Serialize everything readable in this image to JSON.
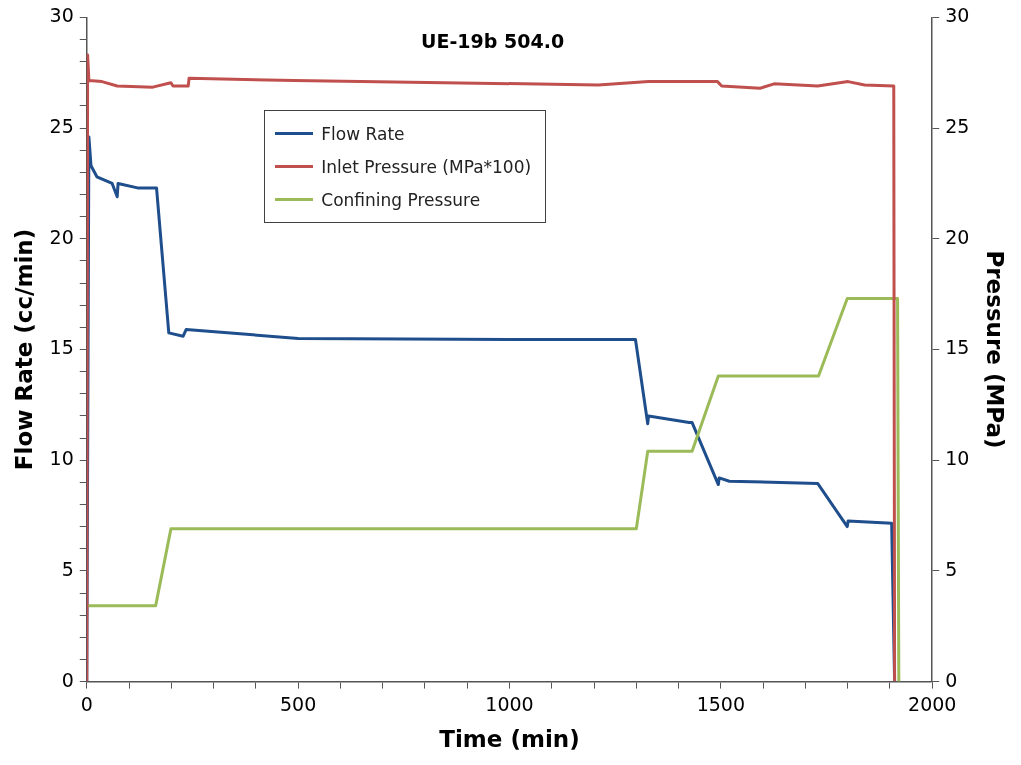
{
  "chart_data": {
    "type": "line",
    "title": "UE-19b 504.0",
    "xlabel": "Time (min)",
    "ylabel": "Flow Rate (cc/min)",
    "y2label": "Pressure (MPa)",
    "xlim": [
      0,
      2000
    ],
    "xticks": [
      0,
      {
        "value": 100,
        "label": null
      },
      {
        "value": 200,
        "label": null
      },
      {
        "value": 300,
        "label": null
      },
      {
        "value": 400,
        "label": null
      },
      500,
      {
        "value": 600,
        "label": null
      },
      {
        "value": 700,
        "label": null
      },
      {
        "value": 800,
        "label": null
      },
      {
        "value": 900,
        "label": null
      },
      1000,
      {
        "value": 1100,
        "label": null
      },
      {
        "value": 1200,
        "label": null
      },
      {
        "value": 1300,
        "label": null
      },
      {
        "value": 1400,
        "label": null
      },
      1500,
      {
        "value": 1600,
        "label": null
      },
      {
        "value": 1700,
        "label": null
      },
      {
        "value": 1800,
        "label": null
      },
      {
        "value": 1900,
        "label": null
      },
      2000
    ],
    "ylim": [
      0,
      30
    ],
    "yticks": [
      0,
      {
        "value": 1,
        "label": null
      },
      {
        "value": 2,
        "label": null
      },
      {
        "value": 3,
        "label": null
      },
      {
        "value": 4,
        "label": null
      },
      5,
      {
        "value": 6,
        "label": null
      },
      {
        "value": 7,
        "label": null
      },
      {
        "value": 8,
        "label": null
      },
      {
        "value": 9,
        "label": null
      },
      10,
      {
        "value": 11,
        "label": null
      },
      {
        "value": 12,
        "label": null
      },
      {
        "value": 13,
        "label": null
      },
      {
        "value": 14,
        "label": null
      },
      15,
      {
        "value": 16,
        "label": null
      },
      {
        "value": 17,
        "label": null
      },
      {
        "value": 18,
        "label": null
      },
      {
        "value": 19,
        "label": null
      },
      20,
      {
        "value": 21,
        "label": null
      },
      {
        "value": 22,
        "label": null
      },
      {
        "value": 23,
        "label": null
      },
      {
        "value": 24,
        "label": null
      },
      25,
      {
        "value": 26,
        "label": null
      },
      {
        "value": 27,
        "label": null
      },
      {
        "value": 28,
        "label": null
      },
      {
        "value": 29,
        "label": null
      },
      30
    ],
    "y2lim": [
      0,
      30
    ],
    "y2ticks": [
      0,
      5,
      10,
      15,
      20,
      25,
      30
    ],
    "grid": false,
    "legend": "top left",
    "marker": "none",
    "line_style": "solid",
    "series": [
      {
        "name": "Flow Rate",
        "color": "#1f4e8c",
        "x": [
          0,
          5,
          10,
          24,
          60,
          72,
          74,
          120,
          165,
          194,
          228,
          235,
          500,
          1000,
          1298,
          1327,
          1329,
          1425,
          1432,
          1494,
          1496,
          1520,
          1729,
          1799,
          1801,
          1904,
          1911
        ],
        "values": [
          0,
          24.6,
          23.3,
          22.8,
          22.5,
          21.9,
          22.5,
          22.3,
          22.3,
          15.75,
          15.6,
          15.9,
          15.5,
          15.45,
          15.45,
          11.65,
          12.0,
          11.7,
          11.7,
          8.9,
          9.2,
          9.05,
          8.95,
          7.0,
          7.25,
          7.15,
          0
        ]
      },
      {
        "name": "Inlet Pressure (MPa*100)",
        "color": "#c0504d",
        "axis": "y2",
        "x": [
          0,
          2,
          5,
          36,
          72,
          156,
          199,
          204,
          240,
          242,
          491,
          1210,
          1329,
          1492,
          1502,
          1593,
          1626,
          1729,
          1801,
          1840,
          1909,
          1911
        ],
        "values": [
          0,
          28.3,
          27.15,
          27.1,
          26.9,
          26.85,
          27.05,
          26.9,
          26.9,
          27.25,
          27.15,
          26.95,
          27.1,
          27.1,
          26.9,
          26.8,
          27.0,
          26.9,
          27.1,
          26.95,
          26.9,
          0
        ]
      },
      {
        "name": "Confining Pressure",
        "color": "#9bbb59",
        "axis": "y2",
        "x": [
          0,
          163,
          199,
          1300,
          1327,
          1432,
          1494,
          1731,
          1799,
          1918,
          1921
        ],
        "values": [
          3.43,
          3.43,
          6.9,
          6.9,
          10.4,
          10.4,
          13.8,
          13.8,
          17.3,
          17.3,
          0
        ]
      }
    ]
  }
}
